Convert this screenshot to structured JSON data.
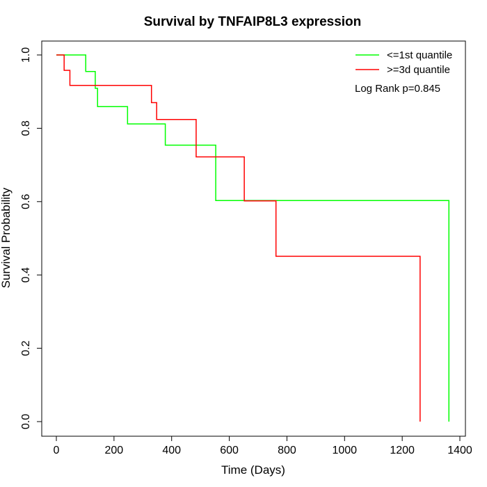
{
  "chart_data": {
    "type": "line",
    "subtype": "kaplan-meier step",
    "title": "Survival by TNFAIP8L3 expression",
    "xlabel": "Time (Days)",
    "ylabel": "Survival Probability",
    "xlim": [
      0,
      1400
    ],
    "ylim": [
      0,
      1.0
    ],
    "xticks": [
      0,
      200,
      400,
      600,
      800,
      1000,
      1200,
      1400
    ],
    "xtick_labels": [
      "0",
      "200",
      "400",
      "600",
      "800",
      "1000",
      "1200",
      "1400"
    ],
    "yticks": [
      0,
      0.2,
      0.4,
      0.6,
      0.8,
      1.0
    ],
    "ytick_labels": [
      "0.0",
      "0.2",
      "0.4",
      "0.6",
      "0.8",
      "1.0"
    ],
    "grid": false,
    "legend_position": "top-right",
    "annotation": "Log Rank p=0.845",
    "series": [
      {
        "name": "<=1st quantile",
        "color": "#00ff00",
        "x": [
          0,
          102,
          135,
          143,
          247,
          378,
          553,
          1362,
          1362
        ],
        "y": [
          1.0,
          0.955,
          0.909,
          0.859,
          0.812,
          0.754,
          0.603,
          0.603,
          0.0
        ]
      },
      {
        "name": ">=3d quantile",
        "color": "#ff0000",
        "x": [
          0,
          27,
          47,
          330,
          348,
          485,
          652,
          762,
          1262,
          1262
        ],
        "y": [
          1.0,
          0.958,
          0.917,
          0.87,
          0.824,
          0.722,
          0.602,
          0.451,
          0.451,
          0.0
        ]
      }
    ]
  }
}
